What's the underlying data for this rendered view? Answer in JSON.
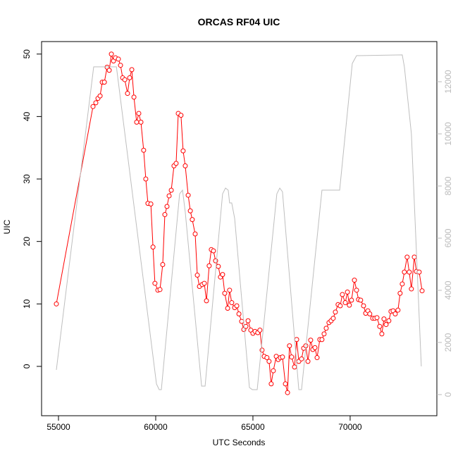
{
  "chart_data": {
    "type": "line",
    "title": "ORCAS RF04 UIC",
    "xlabel": "UTC Seconds",
    "ylabel": "UIC",
    "xlim": [
      54130,
      74460
    ],
    "xticks": [
      55000,
      60000,
      65000,
      70000
    ],
    "ylim": [
      -7.9,
      52.0
    ],
    "yticks": [
      0,
      10,
      20,
      30,
      40,
      50
    ],
    "y2lim": [
      -811,
      13540
    ],
    "y2ticks": [
      0,
      2000,
      4000,
      6000,
      8000,
      10000,
      12000
    ],
    "series": [
      {
        "name": "UIC",
        "color": "#ff0000",
        "marker": "circle",
        "x": [
          54890,
          56775,
          56920,
          57030,
          57140,
          57250,
          57360,
          57500,
          57610,
          57720,
          57830,
          57930,
          58080,
          58190,
          58300,
          58410,
          58550,
          58660,
          58770,
          58880,
          59020,
          59130,
          59240,
          59380,
          59490,
          59600,
          59750,
          59860,
          59960,
          60110,
          60220,
          60360,
          60470,
          60580,
          60690,
          60800,
          60940,
          61050,
          61160,
          61300,
          61410,
          61520,
          61670,
          61780,
          61880,
          62030,
          62140,
          62250,
          62390,
          62500,
          62610,
          62750,
          62860,
          62970,
          63080,
          63220,
          63330,
          63440,
          63550,
          63700,
          63800,
          63910,
          64060,
          64170,
          64280,
          64420,
          64530,
          64640,
          64750,
          64890,
          65000,
          65110,
          65250,
          65360,
          65470,
          65580,
          65720,
          65830,
          65940,
          66050,
          66200,
          66300,
          66410,
          66520,
          66670,
          66780,
          66880,
          66990,
          67140,
          67250,
          67360,
          67500,
          67610,
          67720,
          67830,
          67970,
          68080,
          68190,
          68300,
          68440,
          68550,
          68660,
          68770,
          68910,
          69020,
          69130,
          69240,
          69380,
          69490,
          69600,
          69750,
          69860,
          69960,
          70070,
          70220,
          70330,
          70430,
          70540,
          70690,
          70800,
          70910,
          71010,
          71160,
          71270,
          71380,
          71520,
          71630,
          71740,
          71850,
          71990,
          72100,
          72210,
          72320,
          72460,
          72570,
          72680,
          72790,
          72930,
          73040,
          73150,
          73300,
          73410,
          73550,
          73700
        ],
        "values": [
          10.0,
          41.6,
          42.2,
          42.9,
          43.3,
          45.5,
          45.5,
          47.9,
          47.4,
          50.0,
          48.9,
          49.4,
          49.2,
          48.2,
          46.2,
          45.9,
          43.7,
          46.2,
          47.5,
          43.1,
          39.1,
          40.5,
          39.1,
          34.6,
          30.0,
          26.1,
          26.0,
          19.1,
          13.3,
          12.2,
          12.3,
          16.3,
          24.3,
          25.6,
          27.3,
          28.2,
          32.1,
          32.5,
          40.5,
          40.2,
          34.5,
          32.1,
          27.4,
          24.9,
          23.5,
          21.2,
          14.6,
          12.8,
          13.1,
          13.3,
          10.5,
          16.1,
          18.7,
          18.5,
          16.9,
          16.0,
          14.3,
          14.7,
          11.7,
          9.3,
          12.2,
          10.2,
          9.4,
          9.7,
          8.4,
          7.2,
          5.9,
          6.4,
          7.3,
          5.8,
          5.3,
          5.6,
          5.4,
          5.8,
          2.6,
          1.6,
          1.4,
          0.8,
          -2.8,
          -0.7,
          1.6,
          1.1,
          1.4,
          1.5,
          -2.8,
          -4.2,
          3.3,
          1.5,
          -0.1,
          4.3,
          0.8,
          1.2,
          2.9,
          3.3,
          0.8,
          4.2,
          2.7,
          3.0,
          1.4,
          4.3,
          4.3,
          5.2,
          6.1,
          7.0,
          7.3,
          7.7,
          8.7,
          9.9,
          9.7,
          11.5,
          10.2,
          11.9,
          9.8,
          10.6,
          13.8,
          12.2,
          10.7,
          10.6,
          9.7,
          8.5,
          8.9,
          8.4,
          7.7,
          7.7,
          7.8,
          6.4,
          5.2,
          7.6,
          6.7,
          7.3,
          8.8,
          8.9,
          8.4,
          9.0,
          11.7,
          13.2,
          15.1,
          17.5,
          15.1,
          12.4,
          17.5,
          15.2,
          15.1,
          12.1
        ]
      },
      {
        "color": "#bebebe",
        "axis": "y2",
        "x": [
          54890,
          56810,
          57720,
          57980,
          60040,
          60180,
          60290,
          61230,
          61380,
          61520,
          62360,
          62540,
          63440,
          63590,
          63730,
          63800,
          63910,
          64060,
          64820,
          64970,
          65220,
          66230,
          66380,
          66520,
          67360,
          67500,
          68550,
          69460,
          70110,
          70330,
          72680,
          72790,
          73150,
          73660
        ],
        "values": [
          946,
          12570,
          12570,
          12570,
          405,
          190,
          190,
          7700,
          7840,
          7000,
          324,
          324,
          7700,
          7920,
          7840,
          7350,
          7350,
          6760,
          270,
          190,
          190,
          7700,
          7920,
          7780,
          190,
          190,
          7840,
          7840,
          12700,
          13000,
          13030,
          12570,
          10000,
          1080
        ]
      }
    ]
  }
}
